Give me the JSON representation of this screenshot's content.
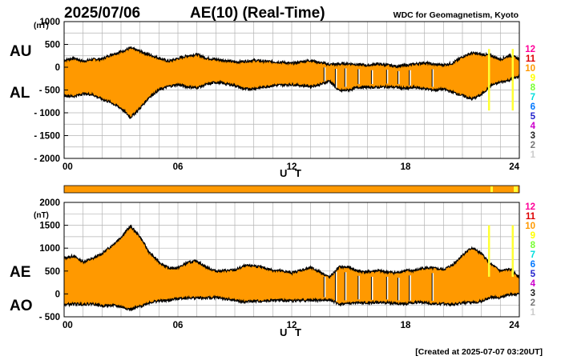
{
  "header": {
    "date": "2025/07/06",
    "title": "AE(10) (Real-Time)",
    "source": "WDC for Geomagnetism, Kyoto"
  },
  "footer": {
    "created": "[Created at 2025-07-07 03:20UT]"
  },
  "colors": {
    "fill": "#ff9900",
    "trace": "#000000",
    "grid": "#b4b4b4",
    "highlight": "#ffff33"
  },
  "legend": {
    "items": [
      {
        "label": "12",
        "color": "#ff0099"
      },
      {
        "label": "11",
        "color": "#dd0000"
      },
      {
        "label": "10",
        "color": "#ff9900"
      },
      {
        "label": "9",
        "color": "#ffff00"
      },
      {
        "label": "8",
        "color": "#77ff33"
      },
      {
        "label": "7",
        "color": "#00dddd"
      },
      {
        "label": "6",
        "color": "#0077ff"
      },
      {
        "label": "5",
        "color": "#2222cc"
      },
      {
        "label": "4",
        "color": "#cc00cc"
      },
      {
        "label": "3",
        "color": "#222222"
      },
      {
        "label": "2",
        "color": "#777777"
      },
      {
        "label": "1",
        "color": "#cccccc"
      }
    ]
  },
  "chart_data": [
    {
      "type": "area",
      "panel": "AU/AL",
      "unit": "(nT)",
      "series_labels": [
        "AU",
        "AL"
      ],
      "xlabel": "U T",
      "xlim": [
        0,
        24
      ],
      "xticks": [
        "00",
        "06",
        "12",
        "18",
        "24"
      ],
      "ylim": [
        -2000,
        1000
      ],
      "yticks": [
        "1000",
        "500",
        "0",
        "- 500",
        "- 1000",
        "- 1500",
        "- 2000"
      ],
      "grid": true,
      "upper": {
        "name": "AU",
        "x": [
          0,
          0.5,
          1,
          1.5,
          2,
          2.5,
          3,
          3.5,
          4,
          4.5,
          5,
          5.5,
          6,
          6.5,
          7,
          7.5,
          8,
          8.5,
          9,
          9.5,
          10,
          10.5,
          11,
          11.5,
          12,
          12.5,
          13,
          13.5,
          14,
          14.5,
          15,
          15.5,
          16,
          16.5,
          17,
          17.5,
          18,
          18.5,
          19,
          19.5,
          20,
          20.5,
          21,
          21.5,
          22,
          22.5,
          23,
          23.5,
          24
        ],
        "values": [
          150,
          200,
          130,
          170,
          180,
          280,
          340,
          420,
          350,
          270,
          200,
          130,
          190,
          250,
          280,
          200,
          170,
          150,
          110,
          130,
          150,
          130,
          120,
          110,
          80,
          120,
          150,
          100,
          60,
          70,
          80,
          60,
          40,
          70,
          50,
          20,
          40,
          70,
          100,
          60,
          50,
          90,
          230,
          310,
          280,
          260,
          170,
          260,
          180
        ]
      },
      "lower": {
        "name": "AL",
        "x": [
          0,
          0.5,
          1,
          1.5,
          2,
          2.5,
          3,
          3.5,
          4,
          4.5,
          5,
          5.5,
          6,
          6.5,
          7,
          7.5,
          8,
          8.5,
          9,
          9.5,
          10,
          10.5,
          11,
          11.5,
          12,
          12.5,
          13,
          13.5,
          14,
          14.5,
          15,
          15.5,
          16,
          16.5,
          17,
          17.5,
          18,
          18.5,
          19,
          19.5,
          20,
          20.5,
          21,
          21.5,
          22,
          22.5,
          23,
          23.5,
          24
        ],
        "values": [
          -620,
          -640,
          -580,
          -600,
          -700,
          -780,
          -900,
          -1100,
          -900,
          -650,
          -500,
          -420,
          -380,
          -430,
          -450,
          -380,
          -330,
          -360,
          -400,
          -480,
          -470,
          -440,
          -400,
          -390,
          -380,
          -400,
          -420,
          -380,
          -300,
          -520,
          -500,
          -440,
          -440,
          -440,
          -430,
          -440,
          -470,
          -440,
          -470,
          -500,
          -480,
          -550,
          -620,
          -700,
          -600,
          -400,
          -330,
          -280,
          -200
        ]
      }
    },
    {
      "type": "area",
      "panel": "AE/AO",
      "unit": "(nT)",
      "series_labels": [
        "AE",
        "AO"
      ],
      "xlabel": "U T",
      "xlim": [
        0,
        24
      ],
      "xticks": [
        "00",
        "06",
        "12",
        "18",
        "24"
      ],
      "ylim": [
        -500,
        2000
      ],
      "yticks": [
        "2000",
        "1500",
        "1000",
        "500",
        "0",
        "- 500"
      ],
      "grid": true,
      "upper": {
        "name": "AE",
        "x": [
          0,
          0.5,
          1,
          1.5,
          2,
          2.5,
          3,
          3.5,
          4,
          4.5,
          5,
          5.5,
          6,
          6.5,
          7,
          7.5,
          8,
          8.5,
          9,
          9.5,
          10,
          10.5,
          11,
          11.5,
          12,
          12.5,
          13,
          13.5,
          14,
          14.5,
          15,
          15.5,
          16,
          16.5,
          17,
          17.5,
          18,
          18.5,
          19,
          19.5,
          20,
          20.5,
          21,
          21.5,
          22,
          22.5,
          23,
          23.5,
          24
        ],
        "values": [
          780,
          830,
          700,
          770,
          880,
          1050,
          1240,
          1480,
          1250,
          900,
          700,
          560,
          570,
          680,
          720,
          580,
          500,
          510,
          520,
          610,
          620,
          570,
          520,
          500,
          460,
          520,
          570,
          480,
          360,
          590,
          580,
          500,
          480,
          510,
          480,
          460,
          510,
          510,
          570,
          560,
          530,
          640,
          850,
          1010,
          880,
          650,
          500,
          540,
          380
        ]
      },
      "lower": {
        "name": "AO",
        "x": [
          0,
          0.5,
          1,
          1.5,
          2,
          2.5,
          3,
          3.5,
          4,
          4.5,
          5,
          5.5,
          6,
          6.5,
          7,
          7.5,
          8,
          8.5,
          9,
          9.5,
          10,
          10.5,
          11,
          11.5,
          12,
          12.5,
          13,
          13.5,
          14,
          14.5,
          15,
          15.5,
          16,
          16.5,
          17,
          17.5,
          18,
          18.5,
          19,
          19.5,
          20,
          20.5,
          21,
          21.5,
          22,
          22.5,
          23,
          23.5,
          24
        ],
        "values": [
          -235,
          -220,
          -225,
          -215,
          -260,
          -250,
          -280,
          -340,
          -275,
          -190,
          -150,
          -145,
          -95,
          -90,
          -85,
          -90,
          -80,
          -105,
          -145,
          -175,
          -160,
          -155,
          -140,
          -140,
          -150,
          -140,
          -135,
          -140,
          -120,
          -225,
          -210,
          -190,
          -200,
          -185,
          -190,
          -210,
          -215,
          -185,
          -185,
          -220,
          -215,
          -230,
          -195,
          -195,
          -160,
          -70,
          -80,
          -10,
          -10
        ]
      }
    }
  ]
}
